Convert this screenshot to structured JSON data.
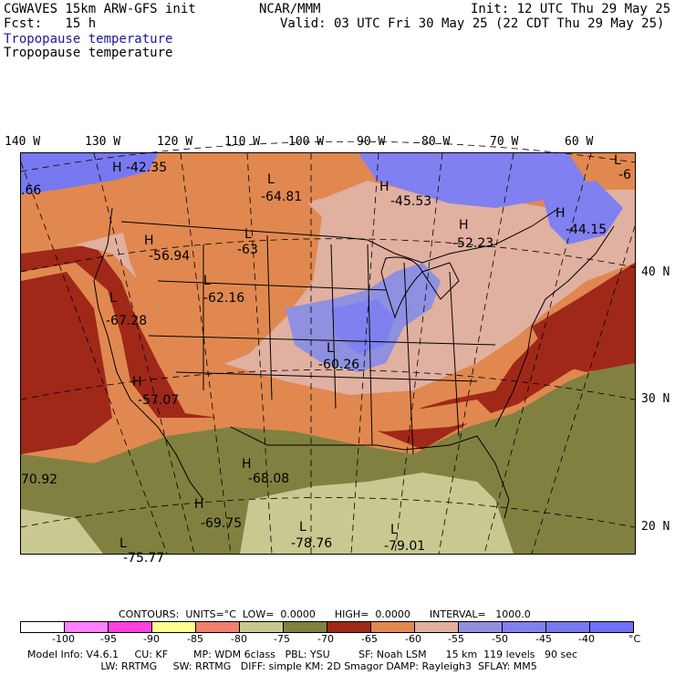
{
  "header": {
    "model": "CGWAVES 15km ARW-GFS init",
    "fcst_label": "Fcst:   15 h",
    "org": "NCAR/MMM",
    "init": "Init: 12 UTC Thu 29 May 25",
    "valid": "Valid: 03 UTC Fri 30 May 25 (22 CDT Thu 29 May 25)",
    "field_title_1": "Tropopause temperature",
    "field_title_2": "Tropopause temperature"
  },
  "longitudes": [
    "140 W",
    "130 W",
    "120 W",
    "110 W",
    "100 W",
    "90 W",
    "80 W",
    "70 W",
    "60 W"
  ],
  "latitudes": [
    "40 N",
    "30 N",
    "20 N"
  ],
  "colors": {
    "lt_-100": "#ffffff",
    "-100_-95": "#ff80ff",
    "-95_-90": "#ff40e0",
    "-90_-85": "#ffff90",
    "-85_-80": "#f08070",
    "-80_-75": "#c8c890",
    "-75_-70": "#808040",
    "-70_-65": "#a02818",
    "-65_-60": "#e08850",
    "-60_-55": "#e0b0a0",
    "-55_-50": "#9090e0",
    "-50_-45": "#8080f0",
    "-45_-40": "#7878f0",
    "gt_-40": "#7070f8"
  },
  "legend": {
    "contour_line": "CONTOURS:  UNITS=°C  LOW=  0.0000      HIGH=  0.0000      INTERVAL=   1000.0",
    "ticks": [
      "-100",
      "-95",
      "-90",
      "-85",
      "-80",
      "-75",
      "-70",
      "-65",
      "-60",
      "-55",
      "-50",
      "-45",
      "-40",
      "°C"
    ],
    "swatches": [
      "#ffffff",
      "#ff80ff",
      "#ff40e0",
      "#ffff90",
      "#f08070",
      "#c8c890",
      "#808040",
      "#a02818",
      "#e08850",
      "#e0b0a0",
      "#9090e0",
      "#8080f0",
      "#7878f0",
      "#7070f8"
    ]
  },
  "footer": {
    "line1": "Model Info: V4.6.1     CU: KF        MP: WDM 6class   PBL: YSU         SF: Noah LSM      15 km  119 levels   90 sec",
    "line2": "                       LW: RRTMG     SW: RRTMG   DIFF: simple KM: 2D Smagor DAMP: Rayleigh3  SFLAY: MM5"
  },
  "map_labels": [
    {
      "kind": "H",
      "value": "-42.35"
    },
    {
      "kind": "",
      "value": ".66"
    },
    {
      "kind": "L",
      "value": "-64.81"
    },
    {
      "kind": "H",
      "value": "-45.53"
    },
    {
      "kind": "H",
      "value": "-52.23"
    },
    {
      "kind": "H",
      "value": "-44.15"
    },
    {
      "kind": "H",
      "value": "-56.94"
    },
    {
      "kind": "L",
      "value": "-63"
    },
    {
      "kind": "L",
      "value": "-62.16"
    },
    {
      "kind": "L",
      "value": "-67.28"
    },
    {
      "kind": "L",
      "value": "-60.26"
    },
    {
      "kind": "H",
      "value": "-57.07"
    },
    {
      "kind": "H",
      "value": "-68.08"
    },
    {
      "kind": "",
      "value": "70.92"
    },
    {
      "kind": "H",
      "value": "-69.75"
    },
    {
      "kind": "L",
      "value": "-78.76"
    },
    {
      "kind": "L",
      "value": "-79.01"
    },
    {
      "kind": "L",
      "value": "-75.77"
    },
    {
      "kind": "L",
      "value": "-6"
    }
  ]
}
